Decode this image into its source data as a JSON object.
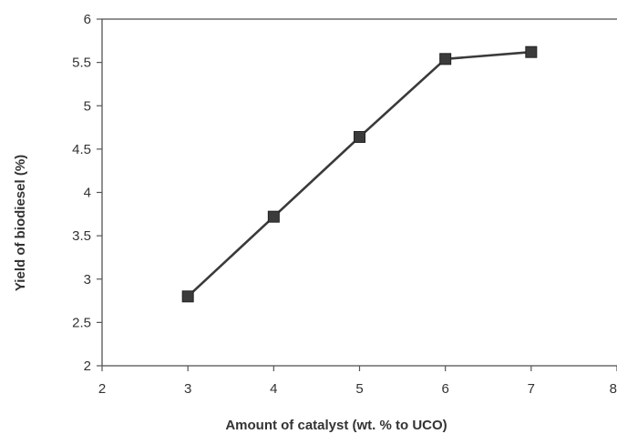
{
  "chart_data": {
    "type": "line",
    "title": "",
    "xlabel": "Amount of catalyst  (wt. % to UCO)",
    "ylabel": "Yield of biodiesel (%)",
    "xlim": [
      2,
      8
    ],
    "ylim": [
      2,
      6
    ],
    "xticks": [
      2,
      3,
      4,
      5,
      6,
      7,
      8
    ],
    "yticks": [
      2,
      2.5,
      3,
      3.5,
      4,
      4.5,
      5,
      5.5,
      6
    ],
    "ytick_labels": [
      "2",
      "2.5",
      "3",
      "3.5",
      "4",
      "4.5",
      "5",
      "5.5",
      "6"
    ],
    "grid": false,
    "legend": "none",
    "series": [
      {
        "x": [
          3,
          4,
          5,
          6,
          7
        ],
        "y": [
          2.8,
          3.72,
          4.64,
          5.54,
          5.62
        ],
        "color": "#3a3a3a",
        "marker": "square"
      }
    ]
  }
}
